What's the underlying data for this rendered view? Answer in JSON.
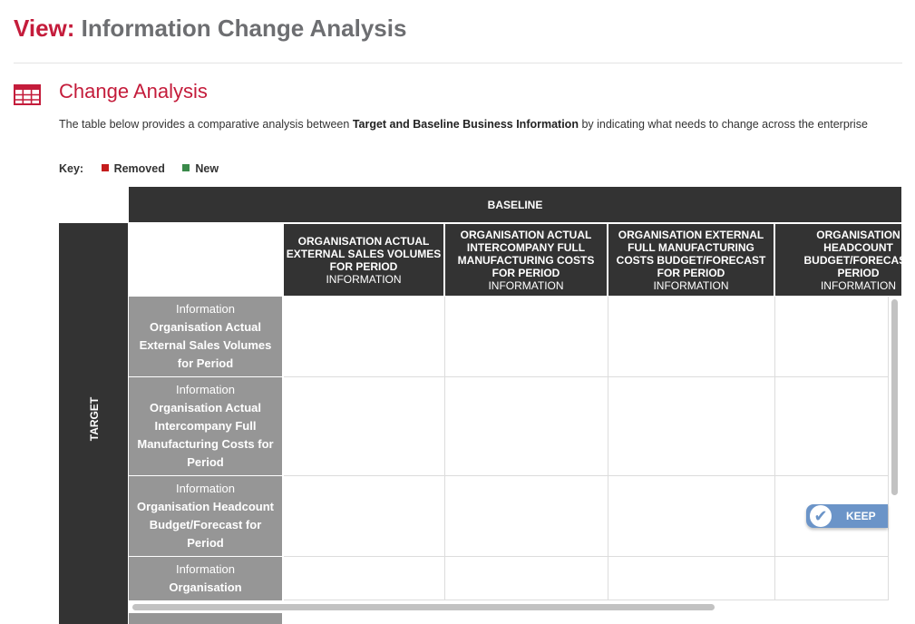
{
  "page": {
    "title_prefix": "View:",
    "title_name": "Information Change Analysis"
  },
  "section": {
    "icon": "table-grid-icon",
    "title": "Change Analysis",
    "description": {
      "part1": "The table below provides a comparative analysis between",
      "bold1": "Target and Baseline",
      "bold2": "Business Information",
      "part2": "by indicating what needs to change across the enterprise"
    }
  },
  "key": {
    "label": "Key:",
    "items": [
      {
        "label": "Removed",
        "color": "#c41c1c"
      },
      {
        "label": "New",
        "color": "#3a8a4a"
      }
    ]
  },
  "matrix": {
    "baseline_label": "BASELINE",
    "target_label": "TARGET",
    "columns": [
      {
        "title": "ORGANISATION ACTUAL EXTERNAL SALES VOLUMES FOR PERIOD",
        "type": "INFORMATION"
      },
      {
        "title": "ORGANISATION ACTUAL INTERCOMPANY FULL MANUFACTURING COSTS FOR PERIOD",
        "type": "INFORMATION"
      },
      {
        "title": "ORGANISATION EXTERNAL FULL MANUFACTURING COSTS BUDGET/FORECAST FOR PERIOD",
        "type": "INFORMATION"
      },
      {
        "title": "ORGANISATION HEADCOUNT BUDGET/FORECAST PERIOD",
        "type": "INFORMATION"
      }
    ],
    "rows": [
      {
        "type": "Information",
        "title": "Organisation Actual External Sales Volumes for Period"
      },
      {
        "type": "Information",
        "title": "Organisation Actual Intercompany Full Manufacturing Costs for Period"
      },
      {
        "type": "Information",
        "title": "Organisation Headcount Budget/Forecast for Period"
      },
      {
        "type": "Information",
        "title": "Organisation"
      }
    ],
    "keep_button": {
      "label": "KEEP",
      "icon": "check-icon",
      "color": "#6b94c8"
    }
  }
}
